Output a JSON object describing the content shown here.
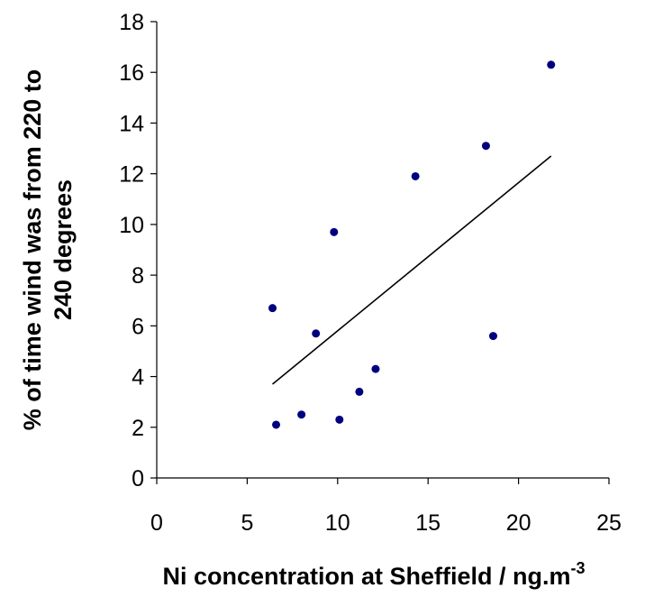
{
  "chart_data": {
    "type": "scatter",
    "title": "",
    "xlabel": "Ni concentration at Sheffield / ng.m",
    "xlabel_superscript": "-3",
    "ylabel_line1": "% of time wind was from 220 to",
    "ylabel_line2": "240 degrees",
    "xlim": [
      0,
      25
    ],
    "ylim": [
      0,
      18
    ],
    "x_ticks": [
      "0",
      "5",
      "10",
      "15",
      "20",
      "25"
    ],
    "y_ticks": [
      "0",
      "2",
      "4",
      "6",
      "8",
      "10",
      "12",
      "14",
      "16",
      "18"
    ],
    "grid": false,
    "legend": "none",
    "marker_color": "#00007f",
    "line_color": "#000000",
    "series": [
      {
        "points": [
          {
            "x": 6.4,
            "y": 6.7
          },
          {
            "x": 6.6,
            "y": 2.1
          },
          {
            "x": 8.0,
            "y": 2.5
          },
          {
            "x": 8.8,
            "y": 5.7
          },
          {
            "x": 9.8,
            "y": 9.7
          },
          {
            "x": 10.1,
            "y": 2.3
          },
          {
            "x": 11.2,
            "y": 3.4
          },
          {
            "x": 12.1,
            "y": 4.3
          },
          {
            "x": 14.3,
            "y": 11.9
          },
          {
            "x": 18.2,
            "y": 13.1
          },
          {
            "x": 18.6,
            "y": 5.6
          },
          {
            "x": 21.8,
            "y": 16.3
          }
        ]
      }
    ],
    "trendline": {
      "x": [
        6.4,
        21.8
      ],
      "y": [
        3.7,
        12.7
      ]
    }
  }
}
